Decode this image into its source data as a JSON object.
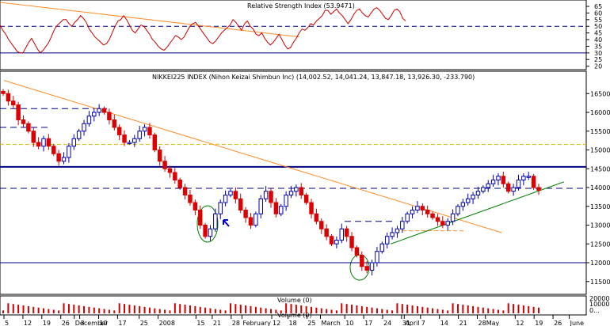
{
  "chart_data": [
    {
      "type": "line",
      "title": "Relative Strength Index (53.9471)",
      "y_ticks": [
        20,
        25,
        30,
        35,
        40,
        45,
        50,
        55,
        60,
        65
      ],
      "ylim": [
        18,
        68
      ],
      "reference_lines": [
        50,
        30
      ],
      "series": [
        {
          "name": "RSI",
          "color": "#cc0000",
          "values": [
            51,
            47,
            44,
            40,
            37,
            34,
            31,
            30,
            30,
            34,
            38,
            41,
            37,
            33,
            30,
            32,
            35,
            38,
            43,
            48,
            51,
            53,
            55,
            55,
            52,
            50,
            53,
            55,
            58,
            56,
            53,
            48,
            45,
            42,
            40,
            38,
            36,
            37,
            40,
            45,
            50,
            54,
            55,
            58,
            55,
            51,
            47,
            45,
            48,
            51,
            50,
            47,
            44,
            40,
            38,
            35,
            33,
            32,
            34,
            37,
            40,
            43,
            42,
            40,
            42,
            46,
            50,
            52,
            53,
            50,
            47,
            44,
            41,
            38,
            37,
            39,
            42,
            45,
            47,
            49,
            51,
            55,
            53,
            50,
            47,
            52,
            54,
            50,
            48,
            44,
            43,
            45,
            41,
            38,
            36,
            38,
            41,
            44,
            40,
            36,
            33,
            34,
            38,
            41,
            45,
            48,
            47,
            49,
            52,
            51,
            54,
            56,
            58,
            62,
            62,
            59,
            61,
            63,
            60,
            58,
            55,
            52,
            55,
            59,
            62,
            63,
            60,
            58,
            57,
            60,
            63,
            64,
            62,
            59,
            56,
            55,
            58,
            62,
            63,
            61,
            56,
            54
          ]
        },
        {
          "name": "RSI trendline",
          "color": "#ff8c2a",
          "start_index": 0,
          "end_index": 104,
          "values": [
            68,
            42
          ]
        }
      ]
    },
    {
      "type": "candlestick",
      "title": "NIKKEI225 INDEX (Nihon Keizai Shimbun Inc) (14,002.52, 14,041.24, 13,847.18, 13,926.30, -233.790)",
      "y_ticks": [
        11500,
        12000,
        12500,
        13000,
        13500,
        14000,
        14500,
        15000,
        15500,
        16000,
        16500
      ],
      "ylim": [
        11200,
        16800
      ],
      "x_axis_labels": [
        "5",
        "12",
        "19",
        "26",
        "December",
        "3",
        "10",
        "17",
        "25",
        "2008",
        "15",
        "21",
        "28",
        "February",
        "12",
        "18",
        "25",
        "March",
        "10",
        "17",
        "24",
        "31",
        "April",
        "7",
        "14",
        "21",
        "28",
        "May",
        "12",
        "19",
        "26",
        "June"
      ],
      "x_axis_label_dates": [
        "2007-11-05",
        "2007-11-12",
        "2007-11-19",
        "2007-11-26",
        "2007-12-01",
        "2007-12-03",
        "2007-12-10",
        "2007-12-17",
        "2007-12-25",
        "2008-01-01",
        "2008-01-15",
        "2008-01-21",
        "2008-01-28",
        "2008-02-01",
        "2008-02-12",
        "2008-02-18",
        "2008-02-25",
        "2008-03-01",
        "2008-03-10",
        "2008-03-17",
        "2008-03-24",
        "2008-03-31",
        "2008-04-01",
        "2008-04-07",
        "2008-04-14",
        "2008-04-21",
        "2008-04-28",
        "2008-05-01",
        "2008-05-12",
        "2008-05-19",
        "2008-05-26",
        "2008-06-01"
      ],
      "closes": [
        16500,
        16300,
        16200,
        15800,
        15700,
        15500,
        15200,
        15100,
        15300,
        15100,
        14900,
        14700,
        14800,
        15100,
        15300,
        15500,
        15700,
        15900,
        16000,
        16100,
        16000,
        15800,
        15600,
        15400,
        15200,
        15200,
        15300,
        15500,
        15600,
        15400,
        15000,
        14700,
        14500,
        14400,
        14200,
        14000,
        13800,
        13600,
        13400,
        13000,
        12700,
        12900,
        13300,
        13600,
        13800,
        13900,
        13700,
        13400,
        13200,
        13000,
        13300,
        13700,
        13900,
        13600,
        13300,
        13500,
        13800,
        13900,
        14000,
        13800,
        13600,
        13300,
        13100,
        12900,
        12700,
        12500,
        12600,
        12900,
        12700,
        12400,
        12200,
        11900,
        11800,
        12000,
        12300,
        12500,
        12700,
        12800,
        12900,
        13100,
        13300,
        13400,
        13500,
        13400,
        13300,
        13200,
        13100,
        13000,
        13100,
        13300,
        13500,
        13600,
        13700,
        13800,
        13900,
        14000,
        14100,
        14200,
        14300,
        14100,
        13900,
        14000,
        14200,
        14300,
        14300,
        14000,
        13926
      ],
      "reference_lines": [
        {
          "value": 16100,
          "style": "dashed",
          "color": "#000080"
        },
        {
          "value": 15600,
          "style": "dashed",
          "color": "#000080"
        },
        {
          "value": 15150,
          "style": "dashed",
          "color": "#e8b800"
        },
        {
          "value": 14550,
          "style": "solid",
          "color": "#000080"
        },
        {
          "value": 13980,
          "style": "dashed",
          "color": "#000080"
        },
        {
          "value": 13100,
          "style": "dashed",
          "color": "#000080"
        },
        {
          "value": 12850,
          "style": "dashed",
          "color": "#ff8c2a"
        },
        {
          "value": 12000,
          "style": "solid",
          "color": "#000080"
        }
      ],
      "trendlines": [
        {
          "name": "resistance",
          "color": "#ff8c2a",
          "points": [
            [
              "2007-11-05",
              16850
            ],
            [
              "2008-05-07",
              12800
            ]
          ]
        },
        {
          "name": "support",
          "color": "#008000",
          "points": [
            [
              "2008-03-27",
              12500
            ],
            [
              "2008-05-30",
              14150
            ]
          ]
        }
      ]
    },
    {
      "type": "bar",
      "title": "Volume (0)",
      "y_ticks": [
        10000,
        20000
      ],
      "ylim": [
        0,
        22000
      ],
      "tick_label_ellipsis": "0..."
    }
  ]
}
